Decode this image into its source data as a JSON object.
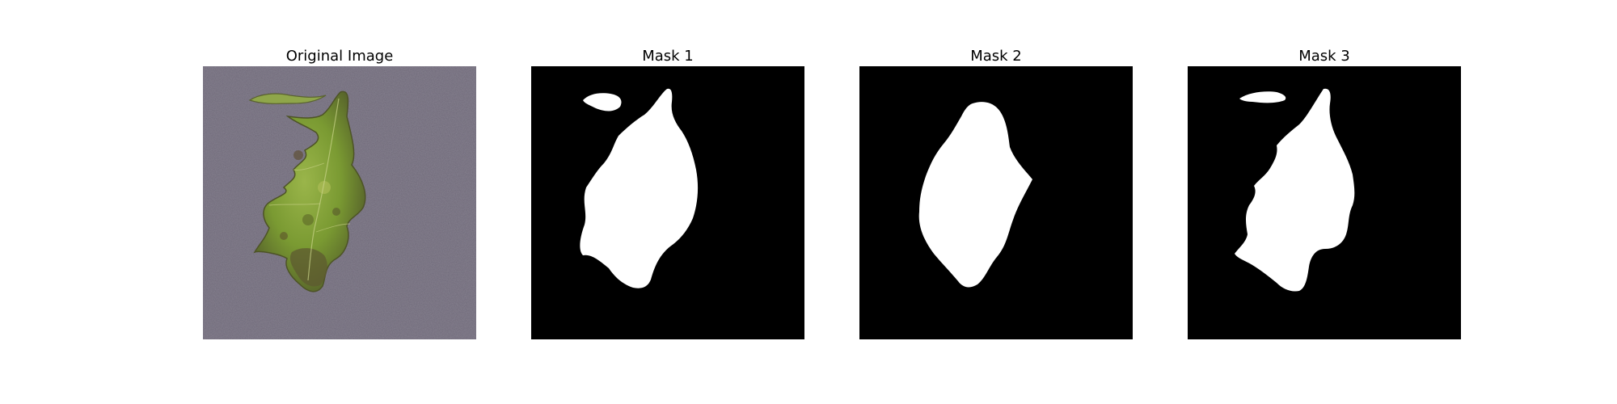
{
  "figure": {
    "panels": [
      {
        "title": "Original Image",
        "content": "leaf-photo"
      },
      {
        "title": "Mask 1",
        "content": "segmentation-mask"
      },
      {
        "title": "Mask 2",
        "content": "segmentation-mask"
      },
      {
        "title": "Mask 3",
        "content": "segmentation-mask"
      }
    ],
    "colors": {
      "background": "#ffffff",
      "mask_background": "#000000",
      "mask_foreground": "#ffffff",
      "photo_background": "#6e6878",
      "leaf_green": "#7a9a32",
      "leaf_dark": "#5a5a2c"
    }
  }
}
